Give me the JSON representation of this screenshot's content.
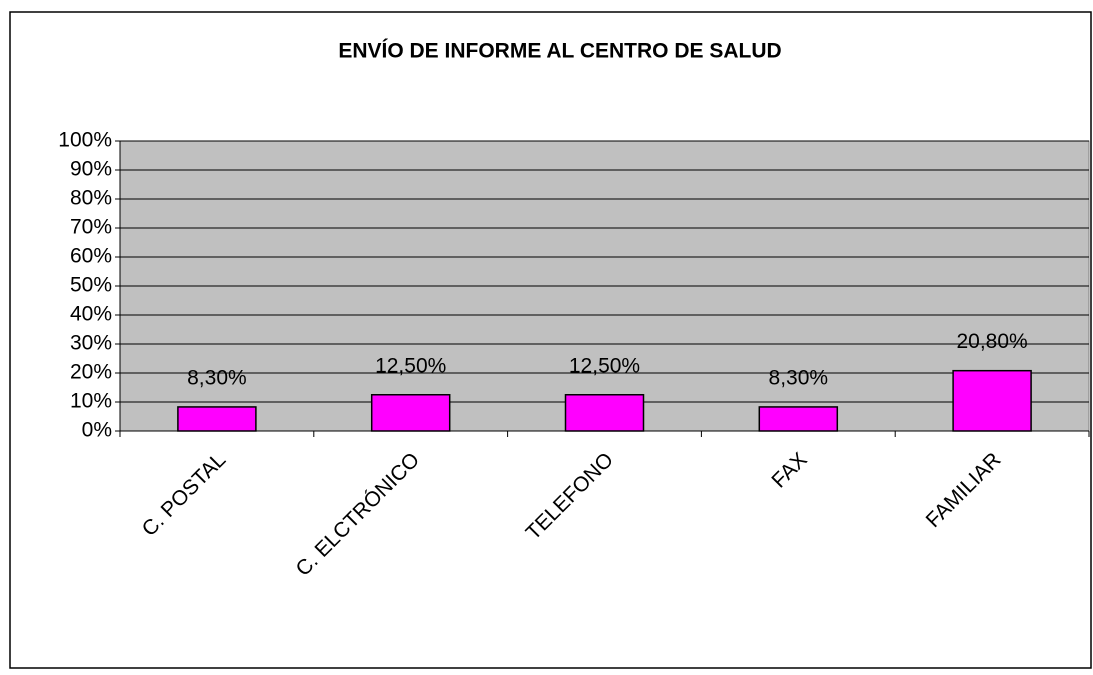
{
  "chart_data": {
    "type": "bar",
    "title": "ENVÍO DE INFORME AL CENTRO DE SALUD",
    "categories": [
      "C. POSTAL",
      "C. ELCTRÓNICO",
      "TELEFONO",
      "FAX",
      "FAMILIAR"
    ],
    "values": [
      8.3,
      12.5,
      12.5,
      8.3,
      20.8
    ],
    "value_labels": [
      "8,30%",
      "12,50%",
      "12,50%",
      "8,30%",
      "20,80%"
    ],
    "color": "#ff00ff",
    "ylim": [
      0,
      100
    ],
    "yticks": [
      {
        "value": 0,
        "label": "0%"
      },
      {
        "value": 10,
        "label": "10%"
      },
      {
        "value": 20,
        "label": "20%"
      },
      {
        "value": 30,
        "label": "30%"
      },
      {
        "value": 40,
        "label": "40%"
      },
      {
        "value": 50,
        "label": "50%"
      },
      {
        "value": 60,
        "label": "60%"
      },
      {
        "value": 70,
        "label": "70%"
      },
      {
        "value": 80,
        "label": "80%"
      },
      {
        "value": 90,
        "label": "90%"
      },
      {
        "value": 100,
        "label": "100%"
      }
    ],
    "grid": true
  }
}
